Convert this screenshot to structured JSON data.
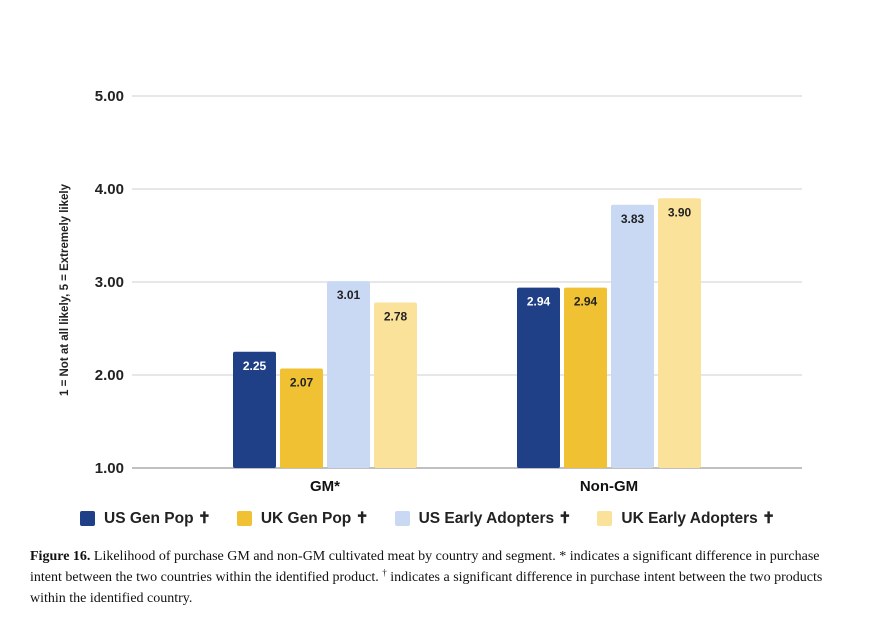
{
  "chart_data": {
    "type": "bar",
    "title": "",
    "xlabel": "",
    "ylabel": "1 = Not at all likely, 5 = Extremely likely",
    "ylim": [
      1,
      5
    ],
    "yticks": [
      "1.00",
      "2.00",
      "3.00",
      "4.00",
      "5.00"
    ],
    "categories": [
      "GM*",
      "Non-GM"
    ],
    "series": [
      {
        "name": "US Gen Pop ✝",
        "color": "#1f3f87",
        "label_color": "#ffffff",
        "values": [
          2.25,
          2.94
        ],
        "labels": [
          "2.25",
          "2.94"
        ]
      },
      {
        "name": "UK Gen Pop ✝",
        "color": "#f0c233",
        "label_color": "#222222",
        "values": [
          2.07,
          2.94
        ],
        "labels": [
          "2.07",
          "2.94"
        ]
      },
      {
        "name": "US Early Adopters ✝",
        "color": "#c9d9f4",
        "label_color": "#222222",
        "values": [
          3.01,
          3.83
        ],
        "labels": [
          "3.01",
          "3.83"
        ]
      },
      {
        "name": "UK Early Adopters ✝",
        "color": "#fbe29a",
        "label_color": "#222222",
        "values": [
          2.78,
          3.9
        ],
        "labels": [
          "2.78",
          "3.90"
        ]
      }
    ],
    "grid": true,
    "legend": "bottom"
  },
  "caption": {
    "label": "Figure 16.",
    "text1": " Likelihood of purchase GM and non-GM cultivated meat by country and segment. * indicates a significant difference in purchase intent between the two countries within the identified product. ",
    "dagger": "†",
    "text2": " indicates a significant difference in purchase intent between the two products within the identified country."
  }
}
